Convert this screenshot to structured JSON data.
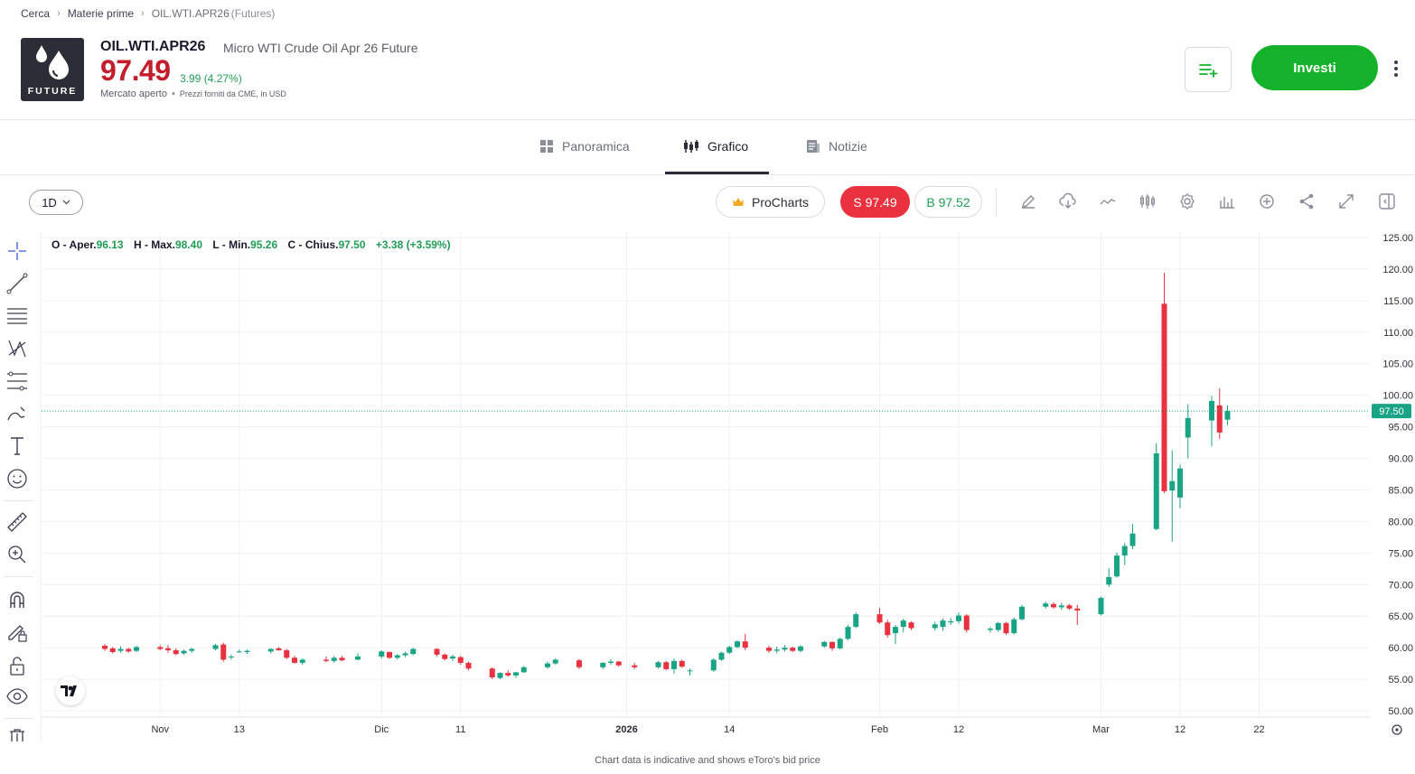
{
  "breadcrumb": {
    "items": [
      "Cerca",
      "Materie prime",
      "OIL.WTI.APR26"
    ],
    "tag": "(Futures)"
  },
  "instrument": {
    "logo_text": "FUTURE",
    "ticker": "OIL.WTI.APR26",
    "description": "Micro WTI Crude Oil Apr 26 Future",
    "price": "97.49",
    "change": "3.99 (4.27%)",
    "market_status": "Mercato aperto",
    "source": "Prezzi forniti da CME, in USD"
  },
  "actions": {
    "invest_label": "Investi"
  },
  "tabs": [
    {
      "label": "Panoramica",
      "icon": "grid-icon",
      "active": false
    },
    {
      "label": "Grafico",
      "icon": "candles-icon",
      "active": true
    },
    {
      "label": "Notizie",
      "icon": "news-icon",
      "active": false
    }
  ],
  "toolbar": {
    "interval": "1D",
    "procharts_label": "ProCharts",
    "sell_label": "S 97.49",
    "buy_label": "B 97.52"
  },
  "ohlc": {
    "open_label": "O - Aper.",
    "open": "96.13",
    "high_label": "H - Max.",
    "high": "98.40",
    "low_label": "L - Min.",
    "low": "95.26",
    "close_label": "C - Chius.",
    "close": "97.50",
    "change": "+3.38 (+3.59%)"
  },
  "colors": {
    "up": "#1aa486",
    "down": "#e9313f",
    "price_line": "#1aa486",
    "invest": "#13b22a"
  },
  "footnote": "Chart data is indicative and shows eToro's bid price",
  "chart_data": {
    "type": "candlestick",
    "title": "",
    "y_ticks": [
      "125.00",
      "120.00",
      "115.00",
      "110.00",
      "105.00",
      "100.00",
      "95.00",
      "90.00",
      "85.00",
      "80.00",
      "75.00",
      "70.00",
      "65.00",
      "60.00",
      "55.00",
      "50.00"
    ],
    "ylim": [
      49,
      126
    ],
    "x_ticks": [
      {
        "label": "Nov",
        "date": "2025-11-03"
      },
      {
        "label": "13",
        "date": "2025-11-13"
      },
      {
        "label": "Dic",
        "date": "2025-12-01"
      },
      {
        "label": "11",
        "date": "2025-12-11"
      },
      {
        "label": "2026",
        "date": "2026-01-01"
      },
      {
        "label": "14",
        "date": "2026-01-14"
      },
      {
        "label": "Feb",
        "date": "2026-02-02"
      },
      {
        "label": "12",
        "date": "2026-02-12"
      },
      {
        "label": "Mar",
        "date": "2026-03-02"
      },
      {
        "label": "12",
        "date": "2026-03-12"
      },
      {
        "label": "22",
        "date": "2026-03-22"
      }
    ],
    "xlim": [
      "2025-10-19",
      "2026-04-05"
    ],
    "last_price_label": "97.50",
    "last_price": 97.5,
    "candles": [
      {
        "d": "2025-10-27",
        "o": 60.3,
        "h": 60.6,
        "l": 59.5,
        "c": 59.8
      },
      {
        "d": "2025-10-28",
        "o": 59.9,
        "h": 60.1,
        "l": 59.1,
        "c": 59.3
      },
      {
        "d": "2025-10-29",
        "o": 59.5,
        "h": 60.2,
        "l": 59.2,
        "c": 59.8
      },
      {
        "d": "2025-10-30",
        "o": 59.8,
        "h": 60.0,
        "l": 59.2,
        "c": 59.4
      },
      {
        "d": "2025-10-31",
        "o": 59.5,
        "h": 60.3,
        "l": 59.3,
        "c": 60.1
      },
      {
        "d": "2025-11-03",
        "o": 60.1,
        "h": 60.4,
        "l": 59.6,
        "c": 59.8
      },
      {
        "d": "2025-11-04",
        "o": 59.9,
        "h": 60.4,
        "l": 59.2,
        "c": 59.6
      },
      {
        "d": "2025-11-05",
        "o": 59.6,
        "h": 59.9,
        "l": 58.8,
        "c": 59.0
      },
      {
        "d": "2025-11-06",
        "o": 59.1,
        "h": 59.7,
        "l": 58.9,
        "c": 59.5
      },
      {
        "d": "2025-11-07",
        "o": 59.5,
        "h": 60.0,
        "l": 59.2,
        "c": 59.8
      },
      {
        "d": "2025-11-10",
        "o": 59.8,
        "h": 60.6,
        "l": 59.6,
        "c": 60.4
      },
      {
        "d": "2025-11-11",
        "o": 60.5,
        "h": 60.8,
        "l": 57.8,
        "c": 58.1
      },
      {
        "d": "2025-11-12",
        "o": 58.5,
        "h": 58.9,
        "l": 58.1,
        "c": 58.6
      },
      {
        "d": "2025-11-13",
        "o": 59.4,
        "h": 59.7,
        "l": 59.2,
        "c": 59.4
      },
      {
        "d": "2025-11-14",
        "o": 59.3,
        "h": 59.7,
        "l": 59.0,
        "c": 59.5
      },
      {
        "d": "2025-11-17",
        "o": 59.4,
        "h": 59.9,
        "l": 59.1,
        "c": 59.8
      },
      {
        "d": "2025-11-18",
        "o": 59.9,
        "h": 60.1,
        "l": 59.5,
        "c": 59.6
      },
      {
        "d": "2025-11-19",
        "o": 59.6,
        "h": 59.8,
        "l": 58.2,
        "c": 58.4
      },
      {
        "d": "2025-11-20",
        "o": 58.4,
        "h": 58.7,
        "l": 57.5,
        "c": 57.6
      },
      {
        "d": "2025-11-21",
        "o": 57.6,
        "h": 58.3,
        "l": 57.3,
        "c": 58.1
      },
      {
        "d": "2025-11-24",
        "o": 58.1,
        "h": 58.6,
        "l": 57.7,
        "c": 57.9
      },
      {
        "d": "2025-11-25",
        "o": 57.9,
        "h": 58.7,
        "l": 57.6,
        "c": 58.4
      },
      {
        "d": "2025-11-26",
        "o": 58.4,
        "h": 58.7,
        "l": 57.9,
        "c": 58.0
      },
      {
        "d": "2025-11-28",
        "o": 58.1,
        "h": 59.1,
        "l": 58.0,
        "c": 58.6
      },
      {
        "d": "2025-12-01",
        "o": 58.6,
        "h": 59.6,
        "l": 58.3,
        "c": 59.4
      },
      {
        "d": "2025-12-02",
        "o": 59.3,
        "h": 59.4,
        "l": 58.2,
        "c": 58.4
      },
      {
        "d": "2025-12-03",
        "o": 58.4,
        "h": 59.0,
        "l": 58.1,
        "c": 58.8
      },
      {
        "d": "2025-12-04",
        "o": 58.8,
        "h": 59.4,
        "l": 58.5,
        "c": 59.1
      },
      {
        "d": "2025-12-05",
        "o": 59.0,
        "h": 60.0,
        "l": 58.8,
        "c": 59.8
      },
      {
        "d": "2025-12-08",
        "o": 59.8,
        "h": 59.9,
        "l": 58.6,
        "c": 58.9
      },
      {
        "d": "2025-12-09",
        "o": 58.9,
        "h": 59.1,
        "l": 58.0,
        "c": 58.2
      },
      {
        "d": "2025-12-10",
        "o": 58.3,
        "h": 58.9,
        "l": 57.9,
        "c": 58.6
      },
      {
        "d": "2025-12-11",
        "o": 58.5,
        "h": 58.7,
        "l": 57.3,
        "c": 57.6
      },
      {
        "d": "2025-12-12",
        "o": 57.6,
        "h": 57.8,
        "l": 56.4,
        "c": 56.7
      },
      {
        "d": "2025-12-15",
        "o": 56.7,
        "h": 56.9,
        "l": 55.0,
        "c": 55.3
      },
      {
        "d": "2025-12-16",
        "o": 55.2,
        "h": 56.1,
        "l": 55.0,
        "c": 56.0
      },
      {
        "d": "2025-12-17",
        "o": 56.0,
        "h": 56.4,
        "l": 55.4,
        "c": 55.6
      },
      {
        "d": "2025-12-18",
        "o": 55.6,
        "h": 56.2,
        "l": 55.2,
        "c": 56.1
      },
      {
        "d": "2025-12-19",
        "o": 56.1,
        "h": 57.1,
        "l": 56.0,
        "c": 56.9
      },
      {
        "d": "2025-12-22",
        "o": 56.9,
        "h": 57.8,
        "l": 56.7,
        "c": 57.5
      },
      {
        "d": "2025-12-23",
        "o": 57.5,
        "h": 58.3,
        "l": 57.3,
        "c": 58.1
      },
      {
        "d": "2025-12-26",
        "o": 58.0,
        "h": 58.2,
        "l": 56.6,
        "c": 56.9
      },
      {
        "d": "2025-12-29",
        "o": 56.9,
        "h": 57.7,
        "l": 56.6,
        "c": 57.6
      },
      {
        "d": "2025-12-30",
        "o": 57.6,
        "h": 58.2,
        "l": 57.3,
        "c": 57.8
      },
      {
        "d": "2025-12-31",
        "o": 57.8,
        "h": 57.9,
        "l": 57.0,
        "c": 57.2
      },
      {
        "d": "2026-01-02",
        "o": 57.2,
        "h": 57.6,
        "l": 56.6,
        "c": 56.9
      },
      {
        "d": "2026-01-05",
        "o": 56.9,
        "h": 57.9,
        "l": 56.7,
        "c": 57.7
      },
      {
        "d": "2026-01-06",
        "o": 57.7,
        "h": 57.9,
        "l": 56.4,
        "c": 56.6
      },
      {
        "d": "2026-01-07",
        "o": 56.6,
        "h": 58.3,
        "l": 55.9,
        "c": 57.9
      },
      {
        "d": "2026-01-08",
        "o": 57.9,
        "h": 58.1,
        "l": 56.8,
        "c": 57.0
      },
      {
        "d": "2026-01-09",
        "o": 56.3,
        "h": 56.7,
        "l": 55.6,
        "c": 56.4
      },
      {
        "d": "2026-01-12",
        "o": 56.4,
        "h": 58.3,
        "l": 56.2,
        "c": 58.1
      },
      {
        "d": "2026-01-13",
        "o": 58.1,
        "h": 59.4,
        "l": 57.9,
        "c": 59.2
      },
      {
        "d": "2026-01-14",
        "o": 59.2,
        "h": 60.3,
        "l": 59.0,
        "c": 60.1
      },
      {
        "d": "2026-01-15",
        "o": 60.1,
        "h": 61.2,
        "l": 59.9,
        "c": 61.0
      },
      {
        "d": "2026-01-16",
        "o": 61.0,
        "h": 62.2,
        "l": 59.6,
        "c": 60.0
      },
      {
        "d": "2026-01-19",
        "o": 60.0,
        "h": 60.3,
        "l": 59.2,
        "c": 59.5
      },
      {
        "d": "2026-01-20",
        "o": 59.5,
        "h": 60.2,
        "l": 59.1,
        "c": 59.7
      },
      {
        "d": "2026-01-21",
        "o": 59.7,
        "h": 60.4,
        "l": 59.4,
        "c": 60.0
      },
      {
        "d": "2026-01-22",
        "o": 60.0,
        "h": 60.2,
        "l": 59.3,
        "c": 59.5
      },
      {
        "d": "2026-01-23",
        "o": 59.5,
        "h": 60.4,
        "l": 59.3,
        "c": 60.2
      },
      {
        "d": "2026-01-26",
        "o": 60.2,
        "h": 61.1,
        "l": 60.0,
        "c": 60.9
      },
      {
        "d": "2026-01-27",
        "o": 60.9,
        "h": 61.0,
        "l": 59.5,
        "c": 59.9
      },
      {
        "d": "2026-01-28",
        "o": 59.9,
        "h": 61.6,
        "l": 59.7,
        "c": 61.4
      },
      {
        "d": "2026-01-29",
        "o": 61.4,
        "h": 63.6,
        "l": 61.2,
        "c": 63.3
      },
      {
        "d": "2026-01-30",
        "o": 63.3,
        "h": 65.6,
        "l": 63.1,
        "c": 65.3
      },
      {
        "d": "2026-02-02",
        "o": 65.3,
        "h": 66.3,
        "l": 63.8,
        "c": 64.0
      },
      {
        "d": "2026-02-03",
        "o": 64.0,
        "h": 64.4,
        "l": 61.6,
        "c": 62.0
      },
      {
        "d": "2026-02-04",
        "o": 62.3,
        "h": 63.6,
        "l": 60.6,
        "c": 63.3
      },
      {
        "d": "2026-02-05",
        "o": 63.3,
        "h": 64.6,
        "l": 62.4,
        "c": 64.3
      },
      {
        "d": "2026-02-06",
        "o": 64.0,
        "h": 64.2,
        "l": 62.8,
        "c": 63.1
      },
      {
        "d": "2026-02-09",
        "o": 63.1,
        "h": 64.1,
        "l": 62.7,
        "c": 63.7
      },
      {
        "d": "2026-02-10",
        "o": 63.3,
        "h": 64.6,
        "l": 62.7,
        "c": 64.3
      },
      {
        "d": "2026-02-11",
        "o": 64.0,
        "h": 64.7,
        "l": 63.6,
        "c": 64.2
      },
      {
        "d": "2026-02-12",
        "o": 64.2,
        "h": 65.6,
        "l": 63.8,
        "c": 65.1
      },
      {
        "d": "2026-02-13",
        "o": 65.1,
        "h": 65.3,
        "l": 62.4,
        "c": 62.8
      },
      {
        "d": "2026-02-16",
        "o": 62.8,
        "h": 63.3,
        "l": 62.4,
        "c": 63.0
      },
      {
        "d": "2026-02-17",
        "o": 62.8,
        "h": 64.1,
        "l": 62.5,
        "c": 63.9
      },
      {
        "d": "2026-02-18",
        "o": 63.9,
        "h": 64.1,
        "l": 62.0,
        "c": 62.3
      },
      {
        "d": "2026-02-19",
        "o": 62.3,
        "h": 64.8,
        "l": 62.1,
        "c": 64.5
      },
      {
        "d": "2026-02-20",
        "o": 64.5,
        "h": 66.8,
        "l": 64.3,
        "c": 66.5
      },
      {
        "d": "2026-02-23",
        "o": 66.5,
        "h": 67.3,
        "l": 66.2,
        "c": 67.0
      },
      {
        "d": "2026-02-24",
        "o": 66.9,
        "h": 67.2,
        "l": 66.2,
        "c": 66.4
      },
      {
        "d": "2026-02-25",
        "o": 66.4,
        "h": 67.1,
        "l": 66.0,
        "c": 66.7
      },
      {
        "d": "2026-02-26",
        "o": 66.7,
        "h": 66.9,
        "l": 66.0,
        "c": 66.2
      },
      {
        "d": "2026-02-27",
        "o": 66.2,
        "h": 66.8,
        "l": 63.6,
        "c": 65.9
      },
      {
        "d": "2026-03-02",
        "o": 65.3,
        "h": 68.1,
        "l": 65.1,
        "c": 67.9
      },
      {
        "d": "2026-03-03",
        "o": 70.0,
        "h": 72.6,
        "l": 69.6,
        "c": 71.2
      },
      {
        "d": "2026-03-04",
        "o": 71.3,
        "h": 75.1,
        "l": 71.1,
        "c": 74.6
      },
      {
        "d": "2026-03-05",
        "o": 74.6,
        "h": 76.6,
        "l": 73.1,
        "c": 76.1
      },
      {
        "d": "2026-03-06",
        "o": 76.1,
        "h": 79.6,
        "l": 75.6,
        "c": 78.1
      },
      {
        "d": "2026-03-09",
        "o": 78.8,
        "h": 92.4,
        "l": 78.6,
        "c": 90.8
      },
      {
        "d": "2026-03-10",
        "o": 114.5,
        "h": 119.4,
        "l": 84.5,
        "c": 84.8
      },
      {
        "d": "2026-03-11",
        "o": 84.9,
        "h": 91.3,
        "l": 76.8,
        "c": 86.4
      },
      {
        "d": "2026-03-12",
        "o": 83.8,
        "h": 89.0,
        "l": 82.1,
        "c": 88.4
      },
      {
        "d": "2026-03-13",
        "o": 93.3,
        "h": 98.6,
        "l": 90.0,
        "c": 96.4
      },
      {
        "d": "2026-03-16",
        "o": 96.0,
        "h": 99.9,
        "l": 91.9,
        "c": 99.1
      },
      {
        "d": "2026-03-17",
        "o": 98.4,
        "h": 101.1,
        "l": 93.1,
        "c": 94.1
      },
      {
        "d": "2026-03-18",
        "o": 96.13,
        "h": 98.4,
        "l": 95.26,
        "c": 97.5
      }
    ]
  }
}
